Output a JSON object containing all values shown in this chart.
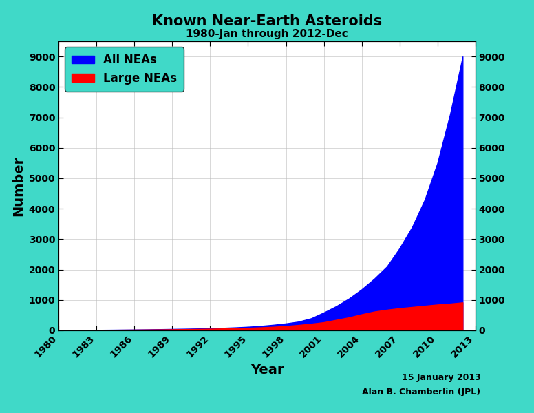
{
  "title": "Known Near-Earth Asteroids",
  "subtitle": "1980-Jan through 2012-Dec",
  "xlabel": "Year",
  "ylabel": "Number",
  "date_label": "15 January 2013",
  "author_label": "Alan B. Chamberlin (JPL)",
  "background_color": "#40D9C8",
  "plot_bg_color": "#FFFFFF",
  "all_nea_color": "#0000FF",
  "large_nea_color": "#FF0000",
  "legend_bg_color": "#40D9C8",
  "ylim": [
    0,
    9500
  ],
  "yticks": [
    0,
    1000,
    2000,
    3000,
    4000,
    5000,
    6000,
    7000,
    8000,
    9000
  ],
  "xticks": [
    1980,
    1983,
    1986,
    1989,
    1992,
    1995,
    1998,
    2001,
    2004,
    2007,
    2010,
    2013
  ],
  "years": [
    1980,
    1981,
    1982,
    1983,
    1984,
    1985,
    1986,
    1987,
    1988,
    1989,
    1990,
    1991,
    1992,
    1993,
    1994,
    1995,
    1996,
    1997,
    1998,
    1999,
    2000,
    2001,
    2002,
    2003,
    2004,
    2005,
    2006,
    2007,
    2008,
    2009,
    2010,
    2011,
    2012
  ],
  "all_neas": [
    10,
    12,
    15,
    17,
    20,
    24,
    28,
    33,
    40,
    47,
    54,
    62,
    72,
    84,
    100,
    120,
    148,
    185,
    230,
    290,
    400,
    590,
    800,
    1050,
    1350,
    1700,
    2100,
    2700,
    3400,
    4300,
    5500,
    7100,
    9000
  ],
  "large_neas": [
    10,
    11,
    13,
    15,
    17,
    20,
    23,
    27,
    31,
    36,
    41,
    47,
    55,
    63,
    73,
    85,
    100,
    120,
    145,
    180,
    220,
    270,
    350,
    430,
    530,
    620,
    680,
    730,
    770,
    810,
    850,
    880,
    920
  ]
}
